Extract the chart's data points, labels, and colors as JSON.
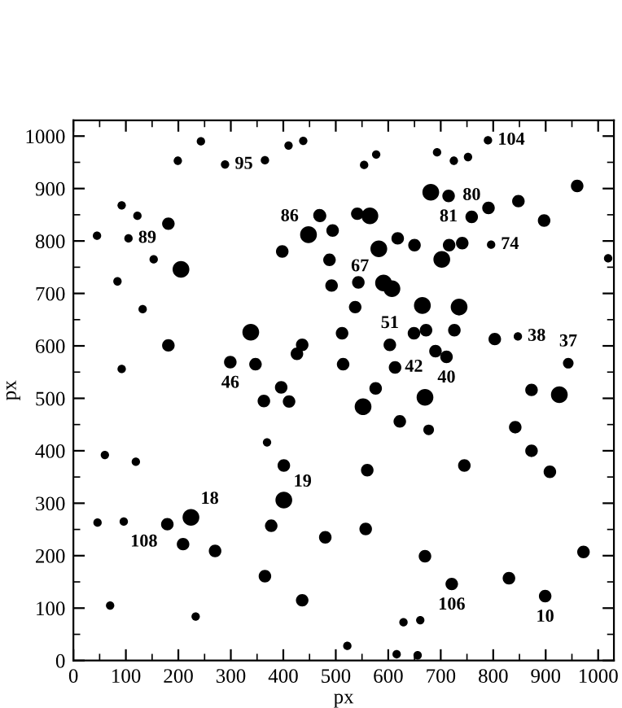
{
  "chart_data": {
    "type": "bubble",
    "xlabel": "px",
    "ylabel": "px",
    "xlim": [
      0,
      1030
    ],
    "ylim": [
      0,
      1030
    ],
    "xticks": [
      0,
      100,
      200,
      300,
      400,
      500,
      600,
      700,
      800,
      900,
      1000
    ],
    "yticks": [
      0,
      100,
      200,
      300,
      400,
      500,
      600,
      700,
      800,
      900,
      1000
    ],
    "grid": false,
    "marker": "circle",
    "series": [
      {
        "color": "#000000",
        "x": [
          45,
          243,
          199,
          289,
          365,
          410,
          438,
          92,
          122,
          105,
          181,
          153,
          205,
          84,
          132,
          181,
          92,
          338,
          299,
          347,
          396,
          363,
          411,
          398,
          448,
          469,
          436,
          426,
          790,
          693,
          725,
          752,
          577,
          554,
          960,
          681,
          715,
          848,
          791,
          897,
          759,
          470,
          541,
          565,
          494,
          618,
          650,
          582,
          716,
          741,
          796,
          1019,
          488,
          702,
          492,
          543,
          591,
          607,
          537,
          665,
          735,
          512,
          603,
          649,
          672,
          726,
          803,
          847,
          690,
          711,
          943,
          514,
          613,
          576,
          670,
          873,
          926,
          552,
          369,
          60,
          119,
          401,
          401,
          46,
          96,
          179,
          224,
          377,
          209,
          270,
          480,
          365,
          436,
          233,
          70,
          622,
          677,
          842,
          873,
          908,
          560,
          745,
          557,
          670,
          972,
          721,
          830,
          899,
          629,
          661,
          522,
          616,
          656
        ],
        "values": [
          810,
          990,
          953,
          946,
          954,
          982,
          991,
          868,
          848,
          805,
          833,
          765,
          746,
          723,
          670,
          601,
          556,
          626,
          569,
          565,
          521,
          495,
          494,
          780,
          812,
          849,
          602,
          585,
          992,
          969,
          953,
          960,
          965,
          945,
          905,
          893,
          886,
          876,
          863,
          839,
          846,
          848,
          852,
          848,
          820,
          805,
          792,
          785,
          792,
          796,
          793,
          767,
          764,
          765,
          715,
          721,
          720,
          709,
          674,
          677,
          674,
          624,
          602,
          624,
          630,
          630,
          613,
          618,
          590,
          579,
          567,
          565,
          559,
          519,
          502,
          516,
          507,
          484,
          416,
          392,
          379,
          372,
          306,
          263,
          265,
          260,
          273,
          257,
          222,
          209,
          235,
          161,
          115,
          84,
          105,
          456,
          440,
          445,
          400,
          360,
          363,
          372,
          251,
          199,
          207,
          146,
          157,
          123,
          73,
          77,
          28,
          12,
          10
        ],
        "sizes": [
          0.25,
          0.25,
          0.25,
          0.25,
          0.25,
          0.25,
          0.25,
          0.25,
          0.25,
          0.25,
          0.56,
          0.25,
          1,
          0.25,
          0.25,
          0.56,
          0.25,
          1,
          0.56,
          0.56,
          0.56,
          0.56,
          0.56,
          0.56,
          1,
          0.56,
          0.56,
          0.56,
          0.25,
          0.25,
          0.25,
          0.25,
          0.25,
          0.25,
          0.56,
          1,
          0.56,
          0.56,
          0.56,
          0.56,
          0.56,
          0.56,
          0.56,
          1,
          0.56,
          0.56,
          0.56,
          1,
          0.56,
          0.56,
          0.25,
          0.25,
          0.56,
          1,
          0.56,
          0.56,
          1,
          1,
          0.56,
          1,
          1,
          0.56,
          0.56,
          0.56,
          0.56,
          0.56,
          0.56,
          0.25,
          0.56,
          0.56,
          0.4,
          0.56,
          0.56,
          0.56,
          1,
          0.56,
          1,
          1,
          0.25,
          0.25,
          0.25,
          0.56,
          1,
          0.25,
          0.25,
          0.56,
          1,
          0.56,
          0.56,
          0.56,
          0.56,
          0.56,
          0.56,
          0.25,
          0.25,
          0.56,
          0.4,
          0.56,
          0.56,
          0.56,
          0.56,
          0.56,
          0.56,
          0.56,
          0.56,
          0.56,
          0.56,
          0.56,
          0.25,
          0.25,
          0.25,
          0.25,
          0.25
        ]
      }
    ],
    "annotations": [
      {
        "text": "95",
        "x": 289,
        "y": 946
      },
      {
        "text": "89",
        "x": 105,
        "y": 805
      },
      {
        "text": "86",
        "x": 448,
        "y": 812
      },
      {
        "text": "46",
        "x": 299,
        "y": 569
      },
      {
        "text": "104",
        "x": 790,
        "y": 992
      },
      {
        "text": "81",
        "x": 715,
        "y": 886
      },
      {
        "text": "80",
        "x": 759,
        "y": 846
      },
      {
        "text": "67",
        "x": 582,
        "y": 785
      },
      {
        "text": "74",
        "x": 796,
        "y": 793
      },
      {
        "text": "38",
        "x": 847,
        "y": 618
      },
      {
        "text": "51",
        "x": 603,
        "y": 602
      },
      {
        "text": "37",
        "x": 943,
        "y": 567
      },
      {
        "text": "40",
        "x": 711,
        "y": 579
      },
      {
        "text": "42",
        "x": 613,
        "y": 559
      },
      {
        "text": "108",
        "x": 179,
        "y": 260
      },
      {
        "text": "18",
        "x": 224,
        "y": 273
      },
      {
        "text": "19",
        "x": 401,
        "y": 306
      },
      {
        "text": "106",
        "x": 721,
        "y": 146
      },
      {
        "text": "10",
        "x": 899,
        "y": 123
      }
    ]
  }
}
